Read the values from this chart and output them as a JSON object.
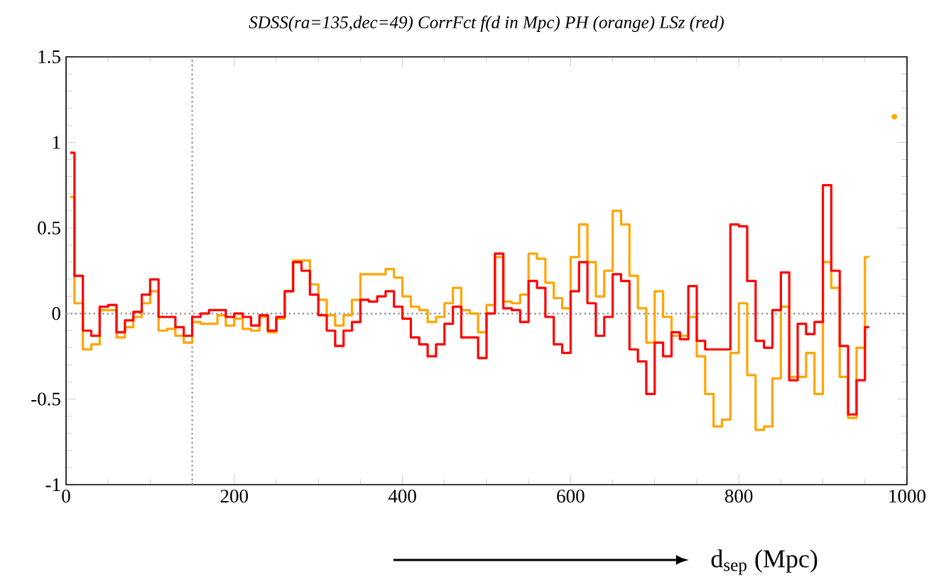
{
  "chart_data": {
    "type": "step",
    "title": "SDSS(ra=135,dec=49) CorrFct f(d in Mpc) PH (orange) LSz (red)",
    "xlabel": "d$_{sep}$ (Mpc)",
    "x": [
      5,
      15,
      25,
      35,
      45,
      55,
      65,
      75,
      85,
      95,
      105,
      115,
      125,
      135,
      145,
      155,
      165,
      175,
      185,
      195,
      205,
      215,
      225,
      235,
      245,
      255,
      265,
      275,
      285,
      295,
      305,
      315,
      325,
      335,
      345,
      355,
      365,
      375,
      385,
      395,
      405,
      415,
      425,
      435,
      445,
      455,
      465,
      475,
      485,
      495,
      505,
      515,
      525,
      535,
      545,
      555,
      565,
      575,
      585,
      595,
      605,
      615,
      625,
      635,
      645,
      655,
      665,
      675,
      685,
      695,
      705,
      715,
      725,
      735,
      745,
      755,
      765,
      775,
      785,
      795,
      805,
      815,
      825,
      835,
      845,
      855,
      865,
      875,
      885,
      895,
      905,
      915,
      925,
      935,
      945,
      955,
      965,
      975,
      985
    ],
    "series": [
      {
        "color": "#ffa500",
        "values": [
          0.68,
          0.06,
          -0.21,
          -0.18,
          0.02,
          0.02,
          -0.14,
          -0.08,
          -0.02,
          0.06,
          0.13,
          -0.1,
          -0.09,
          -0.13,
          -0.17,
          -0.05,
          -0.06,
          -0.06,
          -0.01,
          -0.07,
          -0.03,
          -0.09,
          -0.1,
          -0.02,
          -0.11,
          -0.03,
          0.13,
          0.31,
          0.31,
          0.17,
          0.08,
          -0.01,
          -0.07,
          -0.01,
          0.08,
          0.23,
          0.23,
          0.23,
          0.26,
          0.21,
          0.1,
          0.04,
          0.02,
          -0.05,
          -0.02,
          0.06,
          0.15,
          0.02,
          0.0,
          -0.11,
          0.05,
          0.33,
          0.07,
          0.06,
          0.11,
          0.35,
          0.32,
          0.18,
          0.09,
          0.03,
          0.33,
          0.52,
          0.3,
          0.1,
          0.25,
          0.6,
          0.52,
          0.22,
          0.03,
          -0.17,
          0.13,
          -0.02,
          -0.13,
          -0.13,
          -0.02,
          -0.25,
          -0.47,
          -0.66,
          -0.62,
          -0.23,
          0.06,
          -0.36,
          -0.68,
          -0.66,
          -0.38,
          0.04,
          -0.37,
          -0.37,
          -0.23,
          -0.47,
          0.3,
          0.15,
          -0.37,
          -0.61,
          -0.2,
          0.33,
          null,
          null,
          1.15
        ]
      },
      {
        "color": "#ff0000",
        "values": [
          0.94,
          0.22,
          -0.1,
          -0.13,
          0.04,
          0.05,
          -0.11,
          -0.04,
          0.01,
          0.11,
          0.2,
          -0.02,
          -0.02,
          -0.08,
          -0.13,
          -0.02,
          0.0,
          0.02,
          0.02,
          -0.02,
          0.0,
          -0.02,
          -0.07,
          -0.01,
          -0.1,
          -0.02,
          0.13,
          0.3,
          0.25,
          0.11,
          -0.01,
          -0.1,
          -0.19,
          -0.1,
          -0.05,
          0.08,
          0.07,
          0.1,
          0.13,
          0.04,
          -0.03,
          -0.14,
          -0.18,
          -0.25,
          -0.18,
          -0.06,
          0.04,
          -0.14,
          -0.14,
          -0.26,
          0.0,
          0.35,
          0.03,
          0.02,
          -0.05,
          0.19,
          0.15,
          -0.02,
          -0.18,
          -0.23,
          0.13,
          0.3,
          0.06,
          -0.13,
          -0.02,
          0.23,
          0.19,
          -0.21,
          -0.28,
          -0.47,
          -0.17,
          -0.25,
          -0.11,
          -0.15,
          0.16,
          -0.16,
          -0.21,
          -0.21,
          -0.21,
          0.52,
          0.51,
          0.19,
          -0.16,
          -0.2,
          0.02,
          0.24,
          -0.39,
          -0.06,
          -0.12,
          -0.05,
          0.75,
          0.25,
          -0.19,
          -0.59,
          -0.39,
          -0.08,
          null,
          null,
          null
        ]
      }
    ],
    "xlim": [
      0,
      1000
    ],
    "ylim": [
      -1,
      1.5
    ],
    "xticks": [
      0,
      200,
      400,
      600,
      800,
      1000
    ],
    "yticks": [
      -1,
      -0.5,
      0,
      0.5,
      1,
      1.5
    ],
    "ref_lines": [
      {
        "axis": "y",
        "value": 0,
        "color": "#999999",
        "line_style": "dotted"
      },
      {
        "axis": "x",
        "value": 150,
        "color": "#999999",
        "line_style": "dotted"
      }
    ]
  }
}
